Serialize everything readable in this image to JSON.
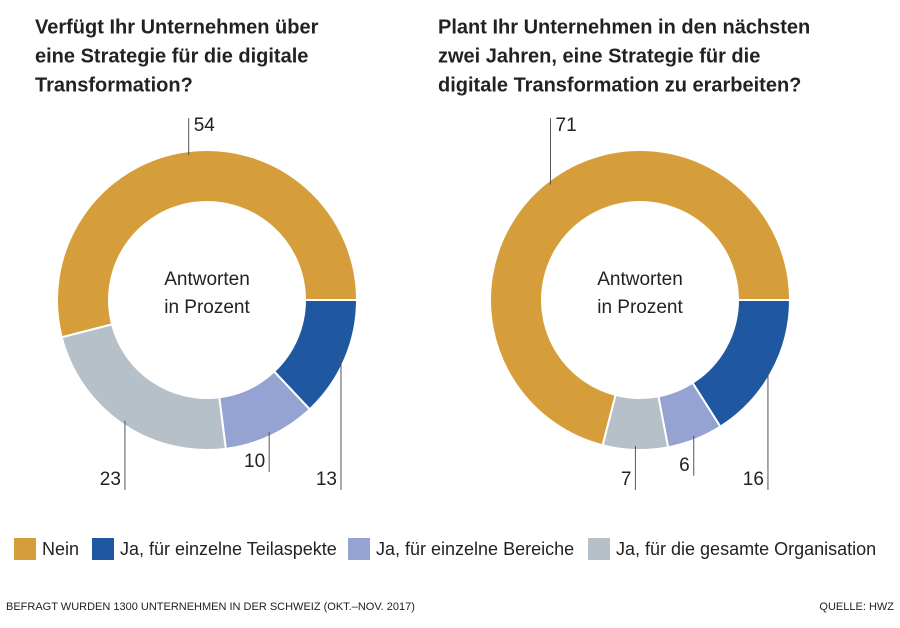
{
  "chart_data": [
    {
      "type": "pie",
      "donut": true,
      "title": [
        "Verfügt Ihr Unternehmen über",
        "eine Strategie für die digitale",
        "Transformation?"
      ],
      "center_label": [
        "Antworten",
        "in Prozent"
      ],
      "categories": [
        "Nein",
        "Ja, für einzelne Teilaspekte",
        "Ja, für einzelne Bereiche",
        "Ja, für die gesamte Organisation"
      ],
      "colors": [
        "#d69e3a",
        "#1f57a0",
        "#94a3d1",
        "#b6c0c9"
      ],
      "values": [
        54,
        13,
        10,
        23
      ]
    },
    {
      "type": "pie",
      "donut": true,
      "title": [
        "Plant Ihr Unternehmen in den nächsten",
        "zwei Jahren, eine Strategie für die",
        "digitale Transformation zu erarbeiten?"
      ],
      "center_label": [
        "Antworten",
        "in Prozent"
      ],
      "categories": [
        "Nein",
        "Ja, für einzelne Teilaspekte",
        "Ja, für einzelne Bereiche",
        "Ja, für die gesamte Organisation"
      ],
      "colors": [
        "#d69e3a",
        "#1f57a0",
        "#94a3d1",
        "#b6c0c9"
      ],
      "values": [
        71,
        16,
        6,
        7
      ]
    }
  ],
  "footer": {
    "note": "BEFRAGT WURDEN 1300 UNTERNEHMEN IN DER SCHWEIZ (OKT.–NOV. 2017)",
    "source": "QUELLE: HWZ"
  }
}
